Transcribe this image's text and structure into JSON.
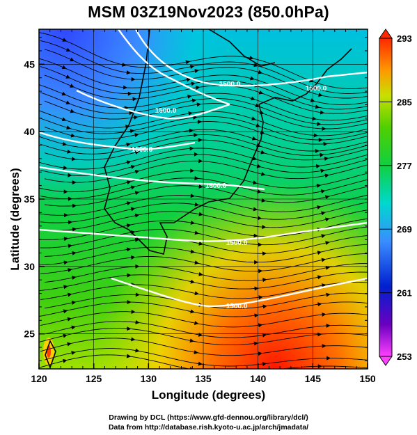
{
  "title": "MSM 03Z19Nov2023 (850.0hPa)",
  "axes": {
    "xlabel": "Longitude (degrees)",
    "ylabel": "Latitude  (degrees)",
    "x_ticks": [
      "120",
      "125",
      "130",
      "135",
      "140",
      "145",
      "150"
    ],
    "y_ticks": [
      "25",
      "30",
      "35",
      "40",
      "45"
    ],
    "x_range": [
      120,
      150
    ],
    "y_range": [
      22.4,
      47.6
    ]
  },
  "colorbar": {
    "ticks": [
      "293",
      "285",
      "277",
      "269",
      "261",
      "253"
    ],
    "range": [
      253,
      293
    ]
  },
  "contour_labels": [
    "1500.0",
    "1500.0",
    "1500.0",
    "1500.0",
    "1500.0",
    "1500.0",
    "1500.0"
  ],
  "credits": {
    "line1": "Drawing by DCL (https://www.gfd-dennou.org/library/dcl/)",
    "line2": "Data from http://database.rish.kyoto-u.ac.jp/arch/jmadata/"
  },
  "colors": {
    "cold": "#3a64ff",
    "cool": "#00c8d8",
    "mid": "#18c800",
    "warm": "#ffd200",
    "hot": "#ff2000",
    "contour": "#ffffff",
    "streamline": "#000000"
  }
}
